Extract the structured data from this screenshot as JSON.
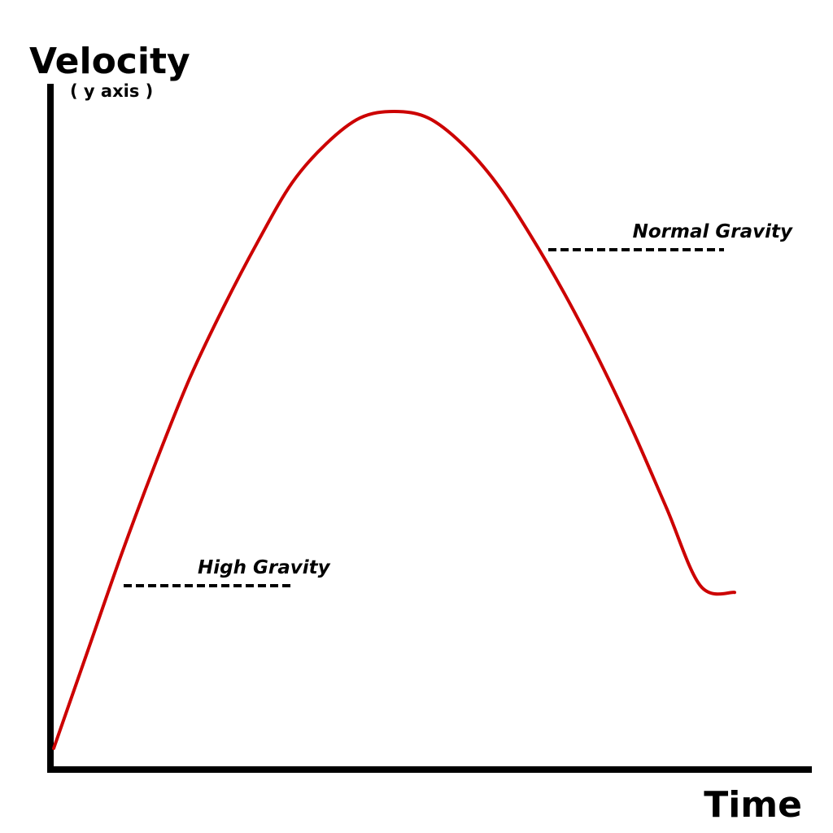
{
  "chart_data": {
    "type": "line",
    "title": "",
    "ylabel": "Velocity",
    "ylabel_note": "( y axis )",
    "xlabel": "Time",
    "ticks_shown": false,
    "grid": false,
    "series": [
      {
        "color": "#cc0000",
        "x": [
          0.0,
          0.05,
          0.1,
          0.15,
          0.2,
          0.25,
          0.3,
          0.35,
          0.4,
          0.45,
          0.5,
          0.55,
          0.6,
          0.65,
          0.7,
          0.75,
          0.8,
          0.85,
          0.9,
          0.95,
          1.0
        ],
        "y": [
          0.02,
          0.17,
          0.32,
          0.46,
          0.59,
          0.7,
          0.8,
          0.89,
          0.95,
          0.99,
          1.0,
          0.99,
          0.95,
          0.89,
          0.81,
          0.72,
          0.62,
          0.51,
          0.39,
          0.27,
          0.26
        ]
      }
    ],
    "annotations": [
      {
        "text": "High Gravity",
        "style": "dashed-leader",
        "x": 0.11,
        "y": 0.28
      },
      {
        "text": "Normal Gravity",
        "style": "dashed-leader",
        "x": 0.73,
        "y": 0.79
      }
    ]
  },
  "colors": {
    "axis": "#000000",
    "curve": "#cc0000",
    "background": "#ffffff"
  }
}
